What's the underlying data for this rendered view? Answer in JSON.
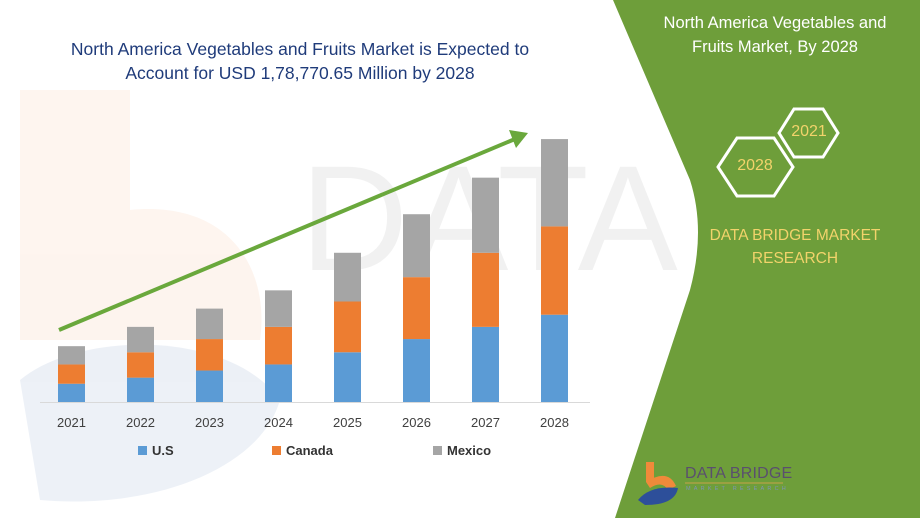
{
  "header": {
    "title_line1": "North America Vegetables and Fruits Market is Expected to",
    "title_line2": "Account for USD 1,78,770.65 Million by 2028"
  },
  "panel": {
    "title_line1": "North America Vegetables and",
    "title_line2": "Fruits Market, By 2028",
    "hex_start": "2021",
    "hex_end": "2028",
    "brand_line1": "DATA BRIDGE MARKET",
    "brand_line2": "RESEARCH",
    "logo_text": "DATA BRIDGE",
    "logo_subtext": "MARKET RESEARCH"
  },
  "watermark": "DATA BRIDGE",
  "colors": {
    "us": "#5b9bd5",
    "canada": "#ed7d31",
    "mexico": "#a5a5a5",
    "panel": "#6e9e3a",
    "arrow": "#6aa83c",
    "accent_text": "#f2d36b"
  },
  "chart_data": {
    "type": "bar",
    "stacked": true,
    "categories": [
      "2021",
      "2022",
      "2023",
      "2024",
      "2025",
      "2026",
      "2027",
      "2028"
    ],
    "series": [
      {
        "name": "U.S",
        "values": [
          18,
          24,
          31,
          37,
          49,
          62,
          74,
          86
        ]
      },
      {
        "name": "Canada",
        "values": [
          19,
          25,
          31,
          37,
          50,
          61,
          73,
          87
        ]
      },
      {
        "name": "Mexico",
        "values": [
          18,
          25,
          30,
          36,
          48,
          62,
          74,
          86
        ]
      }
    ],
    "ylim": [
      0,
      265
    ],
    "y_axis_shown": false,
    "grid": false,
    "legend": "bottom",
    "trend_arrow": true
  }
}
